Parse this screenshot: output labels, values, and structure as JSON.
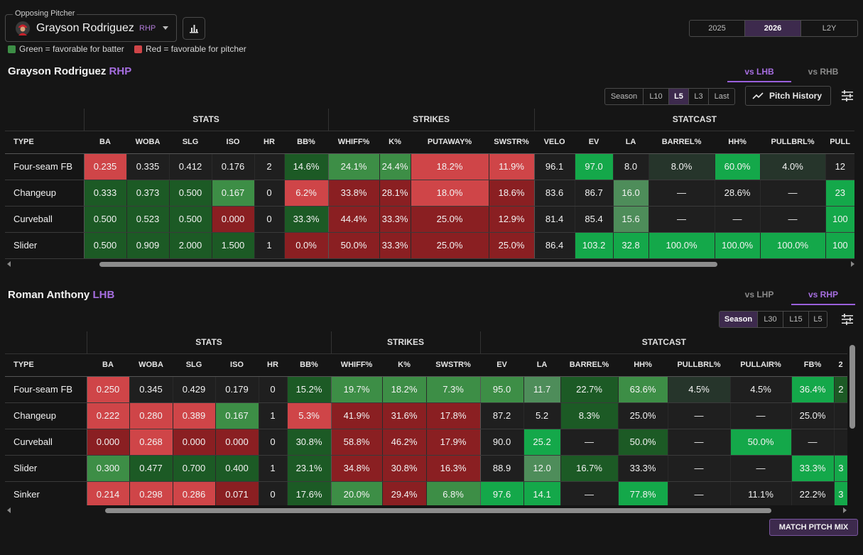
{
  "header": {
    "select_legend": "Opposing Pitcher",
    "pitcher_name": "Grayson Rodriguez",
    "pitcher_hand": "RHP",
    "years": [
      "2025",
      "2026",
      "L2Y"
    ],
    "active_year": "2026",
    "legend_green": "Green = favorable for batter",
    "legend_red": "Red = favorable for pitcher"
  },
  "pitcher": {
    "name": "Grayson Rodriguez",
    "hand": "RHP",
    "vs_tabs": [
      "vs LHB",
      "vs RHB"
    ],
    "active_vs": "vs LHB",
    "ranges": [
      "Season",
      "L10",
      "L5",
      "L3",
      "Last"
    ],
    "active_range": "L5",
    "pitch_history_label": "Pitch History",
    "groups": [
      "STATS",
      "STRIKES",
      "STATCAST"
    ],
    "columns": [
      "TYPE",
      "BA",
      "WOBA",
      "SLG",
      "ISO",
      "HR",
      "BB%",
      "WHIFF%",
      "K%",
      "PUTAWAY%",
      "SWSTR%",
      "VELO",
      "EV",
      "LA",
      "BARREL%",
      "HH%",
      "PULLBRL%",
      "PULL"
    ],
    "rows": [
      {
        "type": "Four-seam FB",
        "cells": [
          "0.235",
          "0.335",
          "0.412",
          "0.176",
          "2",
          "14.6%",
          "24.1%",
          "24.4%",
          "18.2%",
          "11.9%",
          "96.1",
          "97.0",
          "8.0",
          "8.0%",
          "60.0%",
          "4.0%",
          "12"
        ]
      },
      {
        "type": "Changeup",
        "cells": [
          "0.333",
          "0.373",
          "0.500",
          "0.167",
          "0",
          "6.2%",
          "33.8%",
          "28.1%",
          "18.0%",
          "18.6%",
          "83.6",
          "86.7",
          "16.0",
          "—",
          "28.6%",
          "—",
          "23"
        ]
      },
      {
        "type": "Curveball",
        "cells": [
          "0.500",
          "0.523",
          "0.500",
          "0.000",
          "0",
          "33.3%",
          "44.4%",
          "33.3%",
          "25.0%",
          "12.9%",
          "81.4",
          "85.4",
          "15.6",
          "—",
          "—",
          "—",
          "100"
        ]
      },
      {
        "type": "Slider",
        "cells": [
          "0.500",
          "0.909",
          "2.000",
          "1.500",
          "1",
          "0.0%",
          "50.0%",
          "33.3%",
          "25.0%",
          "25.0%",
          "86.4",
          "103.2",
          "32.8",
          "100.0%",
          "100.0%",
          "100.0%",
          "100"
        ]
      }
    ]
  },
  "batter": {
    "name": "Roman Anthony",
    "hand": "LHB",
    "vs_tabs": [
      "vs LHP",
      "vs RHP"
    ],
    "active_vs": "vs RHP",
    "ranges": [
      "Season",
      "L30",
      "L15",
      "L5"
    ],
    "active_range": "Season",
    "groups": [
      "STATS",
      "STRIKES",
      "STATCAST"
    ],
    "columns": [
      "TYPE",
      "BA",
      "WOBA",
      "SLG",
      "ISO",
      "HR",
      "BB%",
      "WHIFF%",
      "K%",
      "SWSTR%",
      "EV",
      "LA",
      "BARREL%",
      "HH%",
      "PULLBRL%",
      "PULLAIR%",
      "FB%",
      "2"
    ],
    "rows": [
      {
        "type": "Four-seam FB",
        "cells": [
          "0.250",
          "0.345",
          "0.429",
          "0.179",
          "0",
          "15.2%",
          "19.7%",
          "18.2%",
          "7.3%",
          "95.0",
          "11.7",
          "22.7%",
          "63.6%",
          "4.5%",
          "4.5%",
          "36.4%",
          "2"
        ]
      },
      {
        "type": "Changeup",
        "cells": [
          "0.222",
          "0.280",
          "0.389",
          "0.167",
          "1",
          "5.3%",
          "41.9%",
          "31.6%",
          "17.8%",
          "87.2",
          "5.2",
          "8.3%",
          "25.0%",
          "—",
          "—",
          "25.0%",
          ""
        ]
      },
      {
        "type": "Curveball",
        "cells": [
          "0.000",
          "0.268",
          "0.000",
          "0.000",
          "0",
          "30.8%",
          "58.8%",
          "46.2%",
          "17.9%",
          "90.0",
          "25.2",
          "—",
          "50.0%",
          "—",
          "50.0%",
          "—",
          ""
        ]
      },
      {
        "type": "Slider",
        "cells": [
          "0.300",
          "0.477",
          "0.700",
          "0.400",
          "1",
          "23.1%",
          "34.8%",
          "30.8%",
          "16.3%",
          "88.9",
          "12.0",
          "16.7%",
          "33.3%",
          "—",
          "—",
          "33.3%",
          "3"
        ]
      },
      {
        "type": "Sinker",
        "cells": [
          "0.214",
          "0.298",
          "0.286",
          "0.071",
          "0",
          "17.6%",
          "20.0%",
          "29.4%",
          "6.8%",
          "97.6",
          "14.1",
          "—",
          "77.8%",
          "—",
          "11.1%",
          "22.2%",
          "3"
        ]
      }
    ]
  },
  "match_button": "MATCH PITCH MIX",
  "colors": {
    "accent": "#a66ee0",
    "favorable_batter": "#3d8e46",
    "favorable_pitcher": "#cf4548"
  }
}
